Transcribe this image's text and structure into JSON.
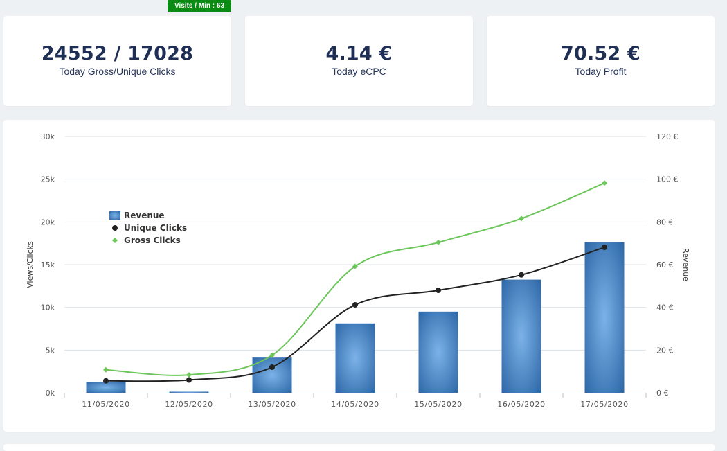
{
  "stats": {
    "visits_badge": "Visits / Min : 63",
    "clicks": {
      "value": "24552 / 17028",
      "label": "Today Gross/Unique Clicks"
    },
    "ecpc": {
      "value": "4.14 €",
      "label": "Today eCPC"
    },
    "profit": {
      "value": "70.52 €",
      "label": "Today Profit"
    }
  },
  "colors": {
    "revenue": "#3f7fc0",
    "unique": "#222222",
    "gross": "#6cc65a",
    "badge": "#0b8a14",
    "stat_text": "#1f2e54"
  },
  "chart_data": {
    "type": "bar",
    "categories": [
      "11/05/2020",
      "12/05/2020",
      "13/05/2020",
      "14/05/2020",
      "15/05/2020",
      "16/05/2020",
      "17/05/2020"
    ],
    "series": [
      {
        "name": "Revenue",
        "type": "bar",
        "axis": "right",
        "values": [
          5,
          0.5,
          16.5,
          32.5,
          38,
          53,
          70.5
        ]
      },
      {
        "name": "Unique Clicks",
        "type": "line",
        "axis": "left",
        "values": [
          1400,
          1500,
          3000,
          10300,
          12000,
          13800,
          17028
        ]
      },
      {
        "name": "Gross Clicks",
        "type": "line",
        "axis": "left",
        "values": [
          2700,
          2100,
          4400,
          14800,
          17600,
          20400,
          24552
        ]
      }
    ],
    "ylabel": "Views/Clicks",
    "y2label": "Revenue",
    "ylim": [
      0,
      30000
    ],
    "y2lim": [
      0,
      120
    ],
    "yticks": [
      "0k",
      "5k",
      "10k",
      "15k",
      "20k",
      "25k",
      "30k"
    ],
    "y2ticks": [
      "0 €",
      "20 €",
      "40 €",
      "60 €",
      "80 €",
      "100 €",
      "120 €"
    ],
    "legend_position": "top-left",
    "grid": true
  }
}
